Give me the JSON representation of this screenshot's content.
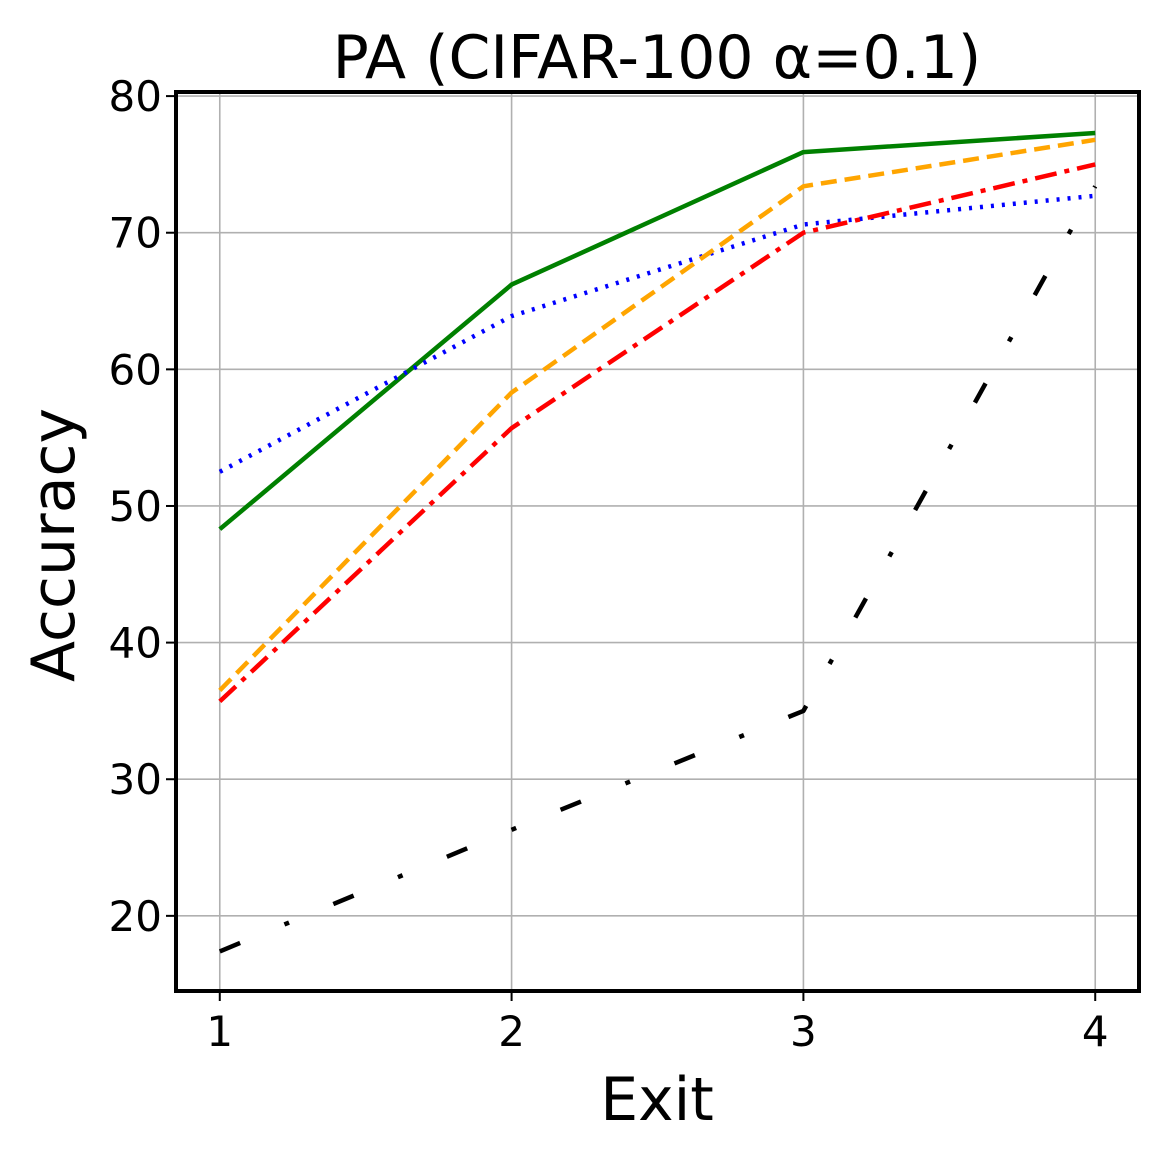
{
  "chart_data": {
    "type": "line",
    "title": "PA (CIFAR-100 α=0.1)",
    "xlabel": "Exit",
    "ylabel": "Accuracy",
    "x": [
      1,
      2,
      3,
      4
    ],
    "xticks": [
      "1",
      "2",
      "3",
      "4"
    ],
    "yticks": [
      "20",
      "30",
      "40",
      "50",
      "60",
      "70",
      "80"
    ],
    "ylim": [
      14.5,
      80.3
    ],
    "xlim": [
      0.85,
      4.15
    ],
    "grid": true,
    "series": [
      {
        "values": [
          48.3,
          66.2,
          75.9,
          77.3
        ],
        "color": "#008000",
        "style": "solid"
      },
      {
        "values": [
          52.5,
          63.9,
          70.6,
          72.7
        ],
        "color": "#0000ff",
        "style": "dotted"
      },
      {
        "values": [
          36.5,
          58.3,
          73.4,
          76.8
        ],
        "color": "#ffa500",
        "style": "dashed"
      },
      {
        "values": [
          35.7,
          55.7,
          70.0,
          75.0
        ],
        "color": "#ff0000",
        "style": "dashdot"
      },
      {
        "values": [
          17.4,
          26.3,
          35.0,
          73.4
        ],
        "color": "#000000",
        "style": "loosely-dashdot"
      }
    ]
  }
}
